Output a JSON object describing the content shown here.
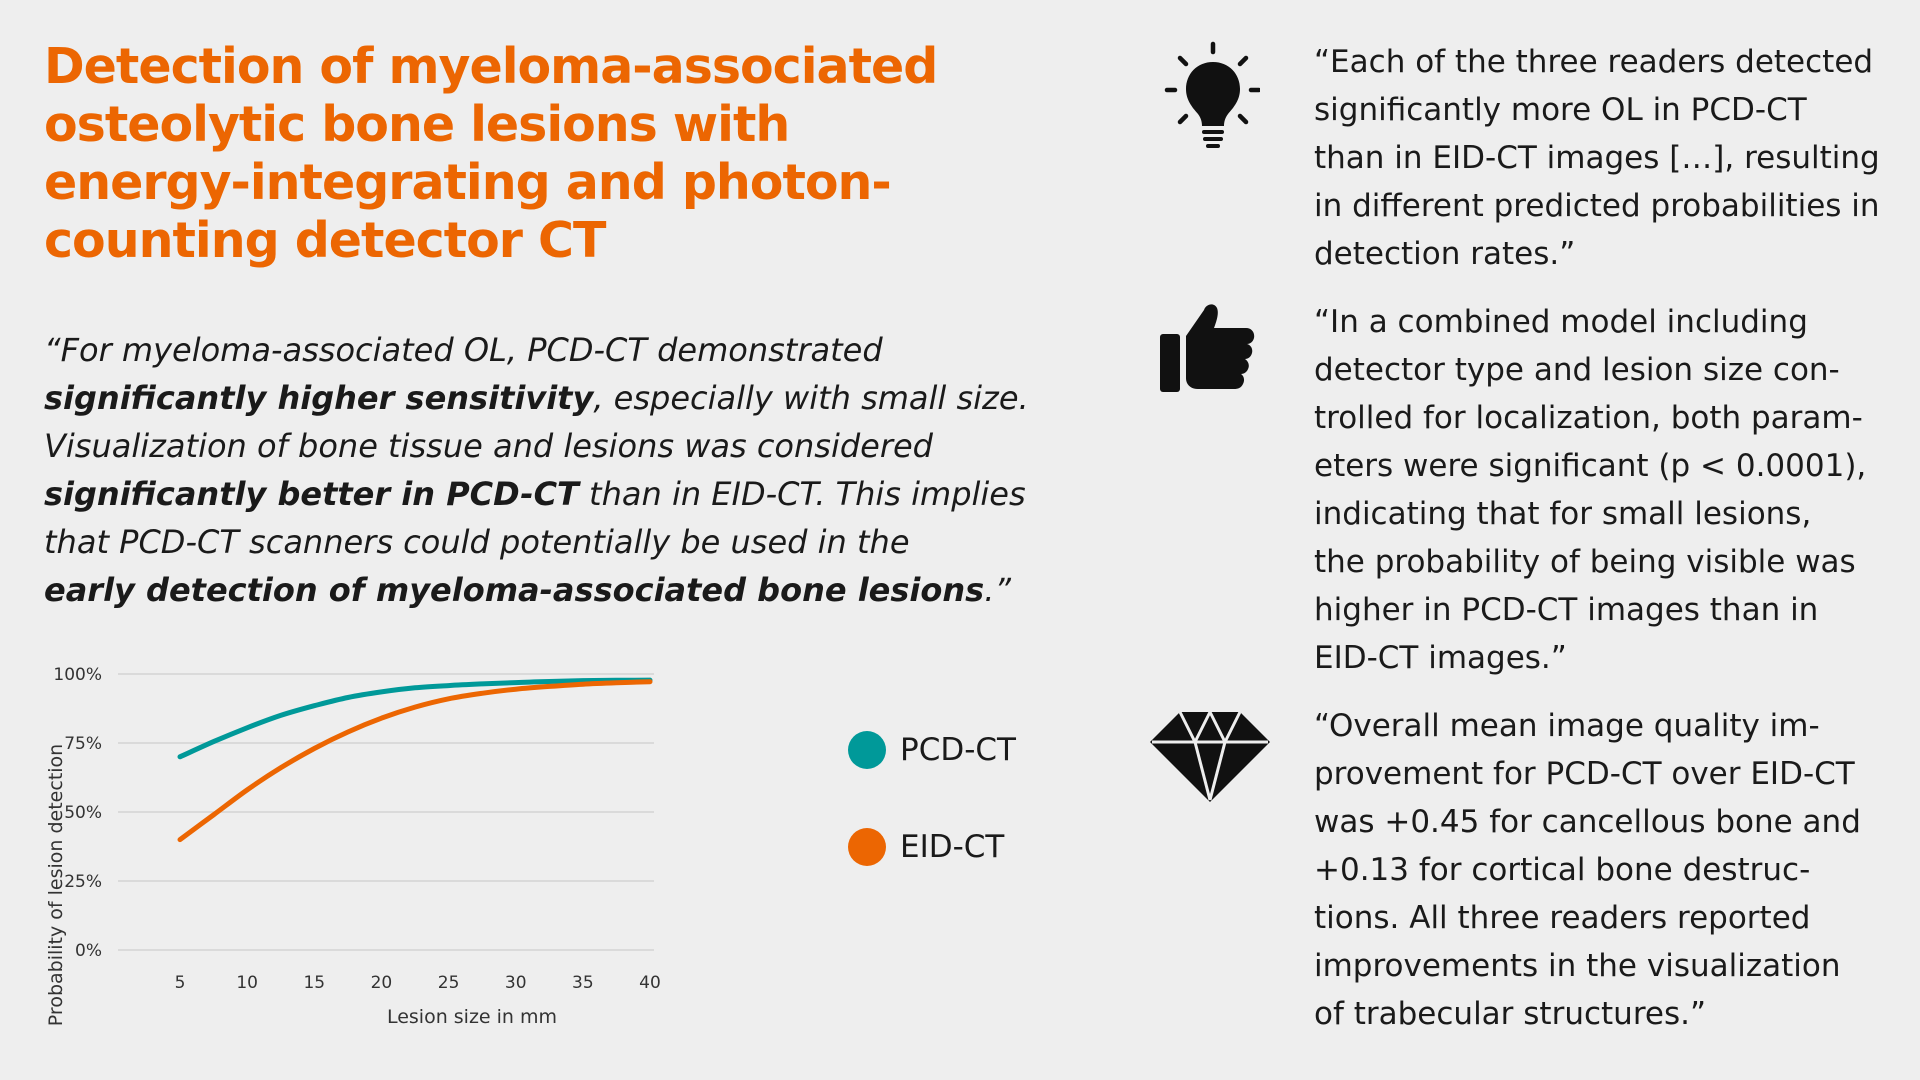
{
  "title": {
    "lines": [
      "Detection of myeloma-associated",
      "osteolytic bone lesions with",
      "energy-integrating and photon-",
      "counting detector CT"
    ]
  },
  "main_quote": {
    "l1": "“For myeloma-associated OL, PCD-CT demonstrated",
    "l2_bold": "significantly higher sensitivity",
    "l2_rest": ", especially with small size.",
    "l3": "Visualization of bone tissue and lesions was considered",
    "l4_bold": "significantly better in PCD-CT",
    "l4_rest": " than in EID-CT. This implies",
    "l5": "that PCD-CT scanners could potentially be used in the",
    "l6_bold": "early detection of myeloma-associated bone lesions",
    "l6_rest": ".”"
  },
  "chart_data": {
    "type": "line",
    "xlabel": "Lesion size in mm",
    "ylabel": "Probability of lesion detection",
    "x": [
      5,
      7.5,
      10,
      12.5,
      15,
      17.5,
      20,
      22.5,
      25,
      27.5,
      30,
      32.5,
      35,
      37.5,
      40
    ],
    "x_ticks": [
      "5",
      "10",
      "15",
      "20",
      "25",
      "30",
      "35",
      "40"
    ],
    "y_ticks": [
      "0%",
      "25%",
      "50%",
      "75%",
      "100%"
    ],
    "xlim": [
      0,
      42
    ],
    "ylim": [
      0,
      100
    ],
    "grid": "horizontal",
    "legend_position": "right",
    "series": [
      {
        "name": "PCD-CT",
        "color": "#009999",
        "values": [
          70,
          75.5,
          80.5,
          85,
          88.5,
          91.5,
          93.5,
          95,
          95.8,
          96.4,
          96.9,
          97.3,
          97.6,
          97.7,
          97.8
        ]
      },
      {
        "name": "EID-CT",
        "color": "#ec6602",
        "values": [
          40,
          49,
          58,
          66,
          73,
          79,
          84,
          88,
          91,
          93,
          94.5,
          95.5,
          96.3,
          96.8,
          97.2
        ]
      }
    ]
  },
  "insights": [
    {
      "icon": "lightbulb-icon",
      "lines": [
        "“Each of the three readers detected",
        "significantly more OL in PCD-CT",
        "than in EID-CT images […], resulting",
        "in different predicted probabilities in",
        "detection rates.”"
      ]
    },
    {
      "icon": "thumbs-up-icon",
      "lines": [
        "“In a combined model including",
        "detector type and lesion size con-",
        "trolled for localization, both param-",
        "eters were significant (p < 0.0001),",
        "indicating that for small lesions,",
        "the probability of being visible was",
        "higher in PCD-CT images than in",
        "EID-CT images.”"
      ]
    },
    {
      "icon": "diamond-icon",
      "lines": [
        "“Overall mean image quality im-",
        "provement for PCD-CT over EID-CT",
        "was +0.45 for cancellous bone and",
        "+0.13 for cortical bone destruc-",
        "tions. All three readers reported",
        "improvements in the visualization",
        "of trabecular structures.”"
      ]
    }
  ]
}
